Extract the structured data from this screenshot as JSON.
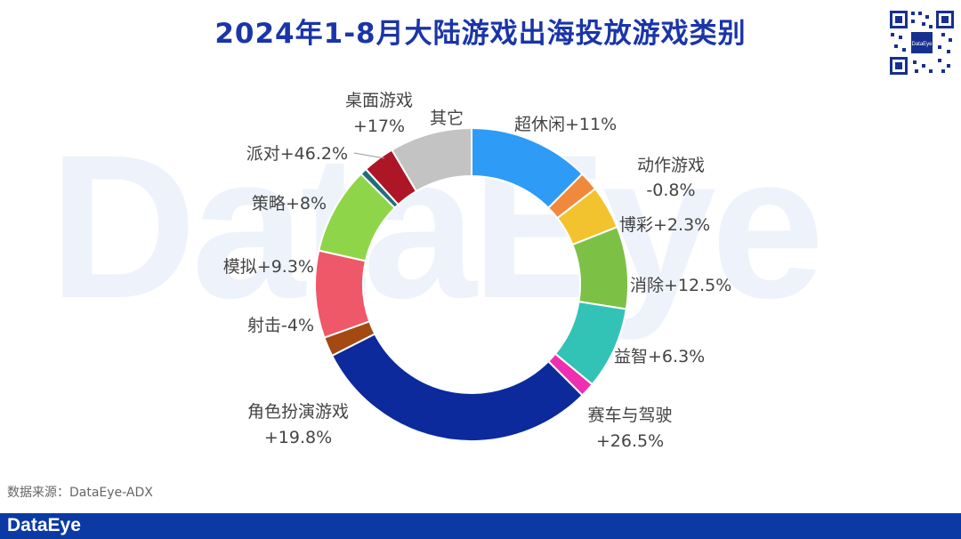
{
  "title": "2024年1-8月大陆游戏出海投放游戏类别",
  "watermark": "DataEye",
  "source": "数据来源：DataEye-ADX",
  "footer_logo": "DataEye",
  "qr_label": "DataEye",
  "chart_data": {
    "type": "pie",
    "donut": true,
    "title": "2024年1-8月大陆游戏出海投放游戏类别",
    "slices": [
      {
        "name": "超休闲",
        "change": "+11%",
        "value": 12.5,
        "color": "#2e9bf6"
      },
      {
        "name": "动作游戏",
        "change": "-0.8%",
        "value": 2.0,
        "color": "#f0893c"
      },
      {
        "name": "博彩",
        "change": "+2.3%",
        "value": 4.5,
        "color": "#f3c32f"
      },
      {
        "name": "消除",
        "change": "+12.5%",
        "value": 8.5,
        "color": "#7cc146"
      },
      {
        "name": "益智",
        "change": "+6.3%",
        "value": 8.5,
        "color": "#33c3b6"
      },
      {
        "name": "赛车与驾驶",
        "change": "+26.5%",
        "value": 1.5,
        "color": "#ee2fb2"
      },
      {
        "name": "角色扮演游戏",
        "change": "+19.8%",
        "value": 30.0,
        "color": "#0c2a9c"
      },
      {
        "name": "射击",
        "change": "-4%",
        "value": 2.0,
        "color": "#a44912"
      },
      {
        "name": "模拟",
        "change": "+9.3%",
        "value": 9.0,
        "color": "#ee5868"
      },
      {
        "name": "策略",
        "change": "+8%",
        "value": 9.0,
        "color": "#8fd54a"
      },
      {
        "name": "派对",
        "change": "+46.2%",
        "value": 0.7,
        "color": "#1f6e7a"
      },
      {
        "name": "桌面游戏",
        "change": "+17%",
        "value": 3.3,
        "color": "#ad1626"
      },
      {
        "name": "其它",
        "change": "",
        "value": 8.5,
        "color": "#c3c3c3"
      }
    ]
  }
}
